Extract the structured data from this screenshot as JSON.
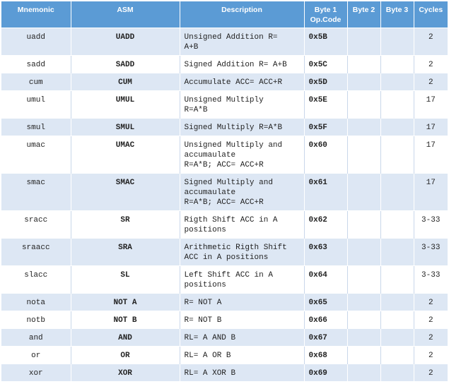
{
  "columns": {
    "mnemonic": "Mnemonic",
    "asm": "ASM",
    "description": "Description",
    "byte1_line1": "Byte 1",
    "byte1_line2": "Op.Code",
    "byte2": "Byte 2",
    "byte3": "Byte 3",
    "cycles": "Cycles"
  },
  "rows": [
    {
      "mnemonic": "uadd",
      "asm": "UADD",
      "desc": [
        "Unsigned Addition R=",
        "A+B"
      ],
      "byte1": "0x5B",
      "byte2": "",
      "byte3": "",
      "cycles": "2"
    },
    {
      "mnemonic": "sadd",
      "asm": "SADD",
      "desc": [
        "Signed Addition R= A+B"
      ],
      "byte1": "0x5C",
      "byte2": "",
      "byte3": "",
      "cycles": "2"
    },
    {
      "mnemonic": "cum",
      "asm": "CUM",
      "desc": [
        "Accumulate ACC= ACC+R"
      ],
      "byte1": "0x5D",
      "byte2": "",
      "byte3": "",
      "cycles": "2"
    },
    {
      "mnemonic": "umul",
      "asm": "UMUL",
      "desc": [
        "Unsigned Multiply",
        "R=A*B"
      ],
      "byte1": "0x5E",
      "byte2": "",
      "byte3": "",
      "cycles": "17"
    },
    {
      "mnemonic": "smul",
      "asm": "SMUL",
      "desc": [
        "Signed Multiply R=A*B"
      ],
      "byte1": "0x5F",
      "byte2": "",
      "byte3": "",
      "cycles": "17"
    },
    {
      "mnemonic": "umac",
      "asm": "UMAC",
      "desc": [
        "Unsigned Multiply and",
        "accumaulate",
        "R=A*B; ACC= ACC+R"
      ],
      "byte1": "0x60",
      "byte2": "",
      "byte3": "",
      "cycles": "17"
    },
    {
      "mnemonic": "smac",
      "asm": "SMAC",
      "desc": [
        "Signed Multiply and",
        "accumaulate",
        "R=A*B; ACC= ACC+R"
      ],
      "byte1": "0x61",
      "byte2": "",
      "byte3": "",
      "cycles": "17"
    },
    {
      "mnemonic": "sracc",
      "asm": "SR",
      "desc": [
        "Rigth Shift ACC in A",
        "positions"
      ],
      "byte1": "0x62",
      "byte2": "",
      "byte3": "",
      "cycles": "3-33"
    },
    {
      "mnemonic": "sraacc",
      "asm": "SRA",
      "desc": [
        "Arithmetic Rigth Shift",
        "ACC in A positions"
      ],
      "byte1": "0x63",
      "byte2": "",
      "byte3": "",
      "cycles": "3-33"
    },
    {
      "mnemonic": "slacc",
      "asm": "SL",
      "desc": [
        "Left Shift ACC in A",
        "positions"
      ],
      "byte1": "0x64",
      "byte2": "",
      "byte3": "",
      "cycles": "3-33"
    },
    {
      "mnemonic": "nota",
      "asm": "NOT A",
      "desc": [
        "R= NOT A"
      ],
      "byte1": "0x65",
      "byte2": "",
      "byte3": "",
      "cycles": "2"
    },
    {
      "mnemonic": "notb",
      "asm": "NOT B",
      "desc": [
        "R= NOT B"
      ],
      "byte1": "0x66",
      "byte2": "",
      "byte3": "",
      "cycles": "2"
    },
    {
      "mnemonic": "and",
      "asm": "AND",
      "desc": [
        "RL= A AND B"
      ],
      "byte1": "0x67",
      "byte2": "",
      "byte3": "",
      "cycles": "2"
    },
    {
      "mnemonic": "or",
      "asm": "OR",
      "desc": [
        "RL= A OR B"
      ],
      "byte1": "0x68",
      "byte2": "",
      "byte3": "",
      "cycles": "2"
    },
    {
      "mnemonic": "xor",
      "asm": "XOR",
      "desc": [
        "RL= A XOR B"
      ],
      "byte1": "0x69",
      "byte2": "",
      "byte3": "",
      "cycles": "2"
    }
  ],
  "colors": {
    "header_bg": "#5b9bd5",
    "row_alt_bg": "#dde7f4",
    "row_bg": "#ffffff"
  }
}
